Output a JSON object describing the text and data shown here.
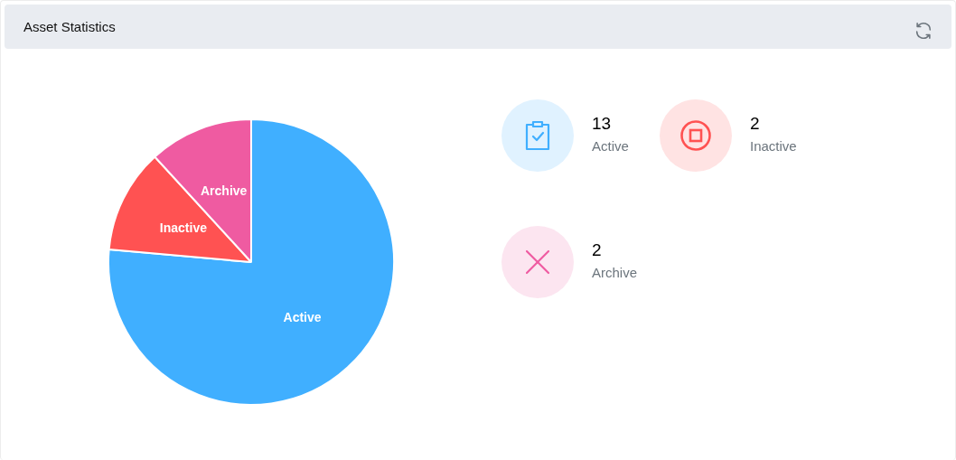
{
  "chart_data": [
    {
      "type": "pie",
      "title": "Asset Statistics",
      "categories": [
        "Active",
        "Inactive",
        "Archive"
      ],
      "values": [
        76.4,
        11.8,
        11.8
      ],
      "colors": [
        "#40afff",
        "#ff5252",
        "#ef5ba1"
      ]
    },
    {
      "type": "other",
      "annotations": [
        "13",
        "Active",
        "2",
        "Inactive",
        "2",
        "Archive"
      ]
    }
  ]
}
